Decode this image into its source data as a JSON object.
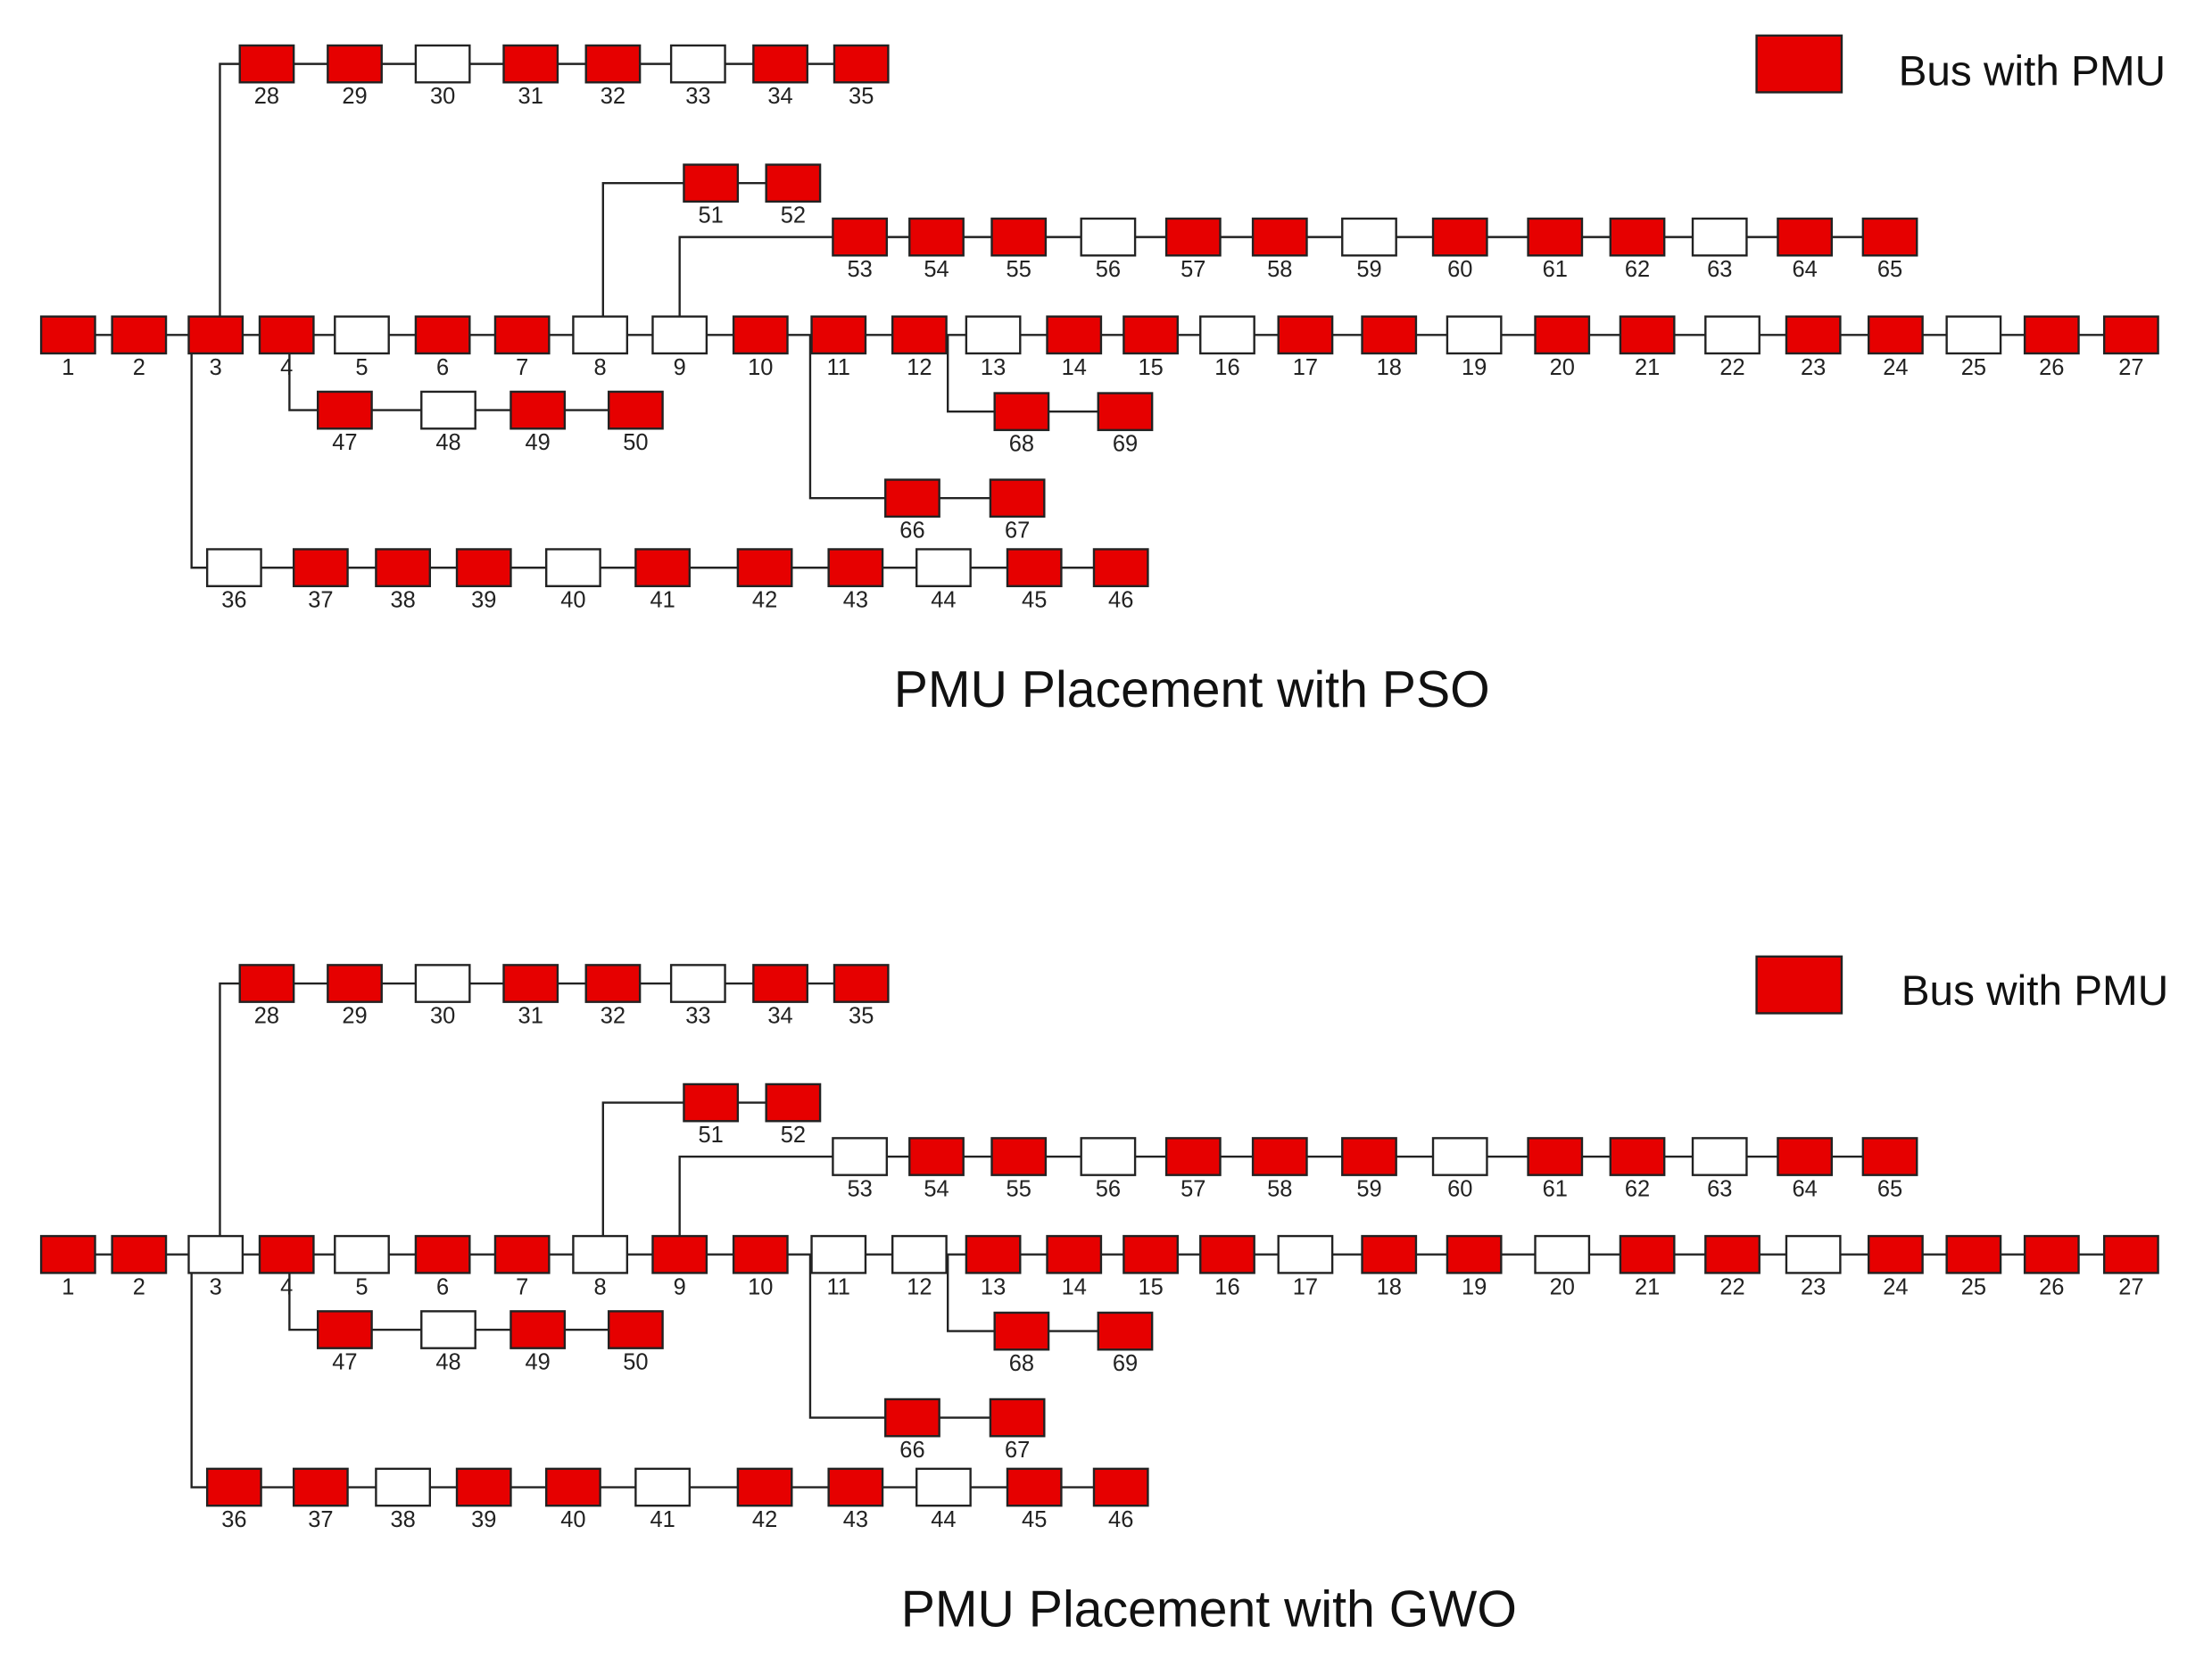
{
  "diagrams": [
    {
      "title": "PMU Placement with PSO",
      "legend": {
        "label": "Bus with PMU",
        "color": "#e60000"
      },
      "buses": [
        {
          "label": "1",
          "pmu": true
        },
        {
          "label": "2",
          "pmu": true
        },
        {
          "label": "3",
          "pmu": true
        },
        {
          "label": "4",
          "pmu": true
        },
        {
          "label": "5",
          "pmu": false
        },
        {
          "label": "6",
          "pmu": true
        },
        {
          "label": "7",
          "pmu": true
        },
        {
          "label": "8",
          "pmu": false
        },
        {
          "label": "9",
          "pmu": false
        },
        {
          "label": "10",
          "pmu": true
        },
        {
          "label": "11",
          "pmu": true
        },
        {
          "label": "12",
          "pmu": true
        },
        {
          "label": "13",
          "pmu": false
        },
        {
          "label": "14",
          "pmu": true
        },
        {
          "label": "15",
          "pmu": true
        },
        {
          "label": "16",
          "pmu": false
        },
        {
          "label": "17",
          "pmu": true
        },
        {
          "label": "18",
          "pmu": true
        },
        {
          "label": "19",
          "pmu": false
        },
        {
          "label": "20",
          "pmu": true
        },
        {
          "label": "21",
          "pmu": true
        },
        {
          "label": "22",
          "pmu": false
        },
        {
          "label": "23",
          "pmu": true
        },
        {
          "label": "24",
          "pmu": true
        },
        {
          "label": "25",
          "pmu": false
        },
        {
          "label": "26",
          "pmu": true
        },
        {
          "label": "27",
          "pmu": true
        },
        {
          "label": "28",
          "pmu": true
        },
        {
          "label": "29",
          "pmu": true
        },
        {
          "label": "30",
          "pmu": false
        },
        {
          "label": "31",
          "pmu": true
        },
        {
          "label": "32",
          "pmu": true
        },
        {
          "label": "33",
          "pmu": false
        },
        {
          "label": "34",
          "pmu": true
        },
        {
          "label": "35",
          "pmu": true
        },
        {
          "label": "36",
          "pmu": false
        },
        {
          "label": "37",
          "pmu": true
        },
        {
          "label": "38",
          "pmu": true
        },
        {
          "label": "39",
          "pmu": true
        },
        {
          "label": "40",
          "pmu": false
        },
        {
          "label": "41",
          "pmu": true
        },
        {
          "label": "42",
          "pmu": true
        },
        {
          "label": "43",
          "pmu": true
        },
        {
          "label": "44",
          "pmu": false
        },
        {
          "label": "45",
          "pmu": true
        },
        {
          "label": "46",
          "pmu": true
        },
        {
          "label": "47",
          "pmu": true
        },
        {
          "label": "48",
          "pmu": false
        },
        {
          "label": "49",
          "pmu": true
        },
        {
          "label": "50",
          "pmu": true
        },
        {
          "label": "51",
          "pmu": true
        },
        {
          "label": "52",
          "pmu": true
        },
        {
          "label": "53",
          "pmu": true
        },
        {
          "label": "54",
          "pmu": true
        },
        {
          "label": "55",
          "pmu": true
        },
        {
          "label": "56",
          "pmu": false
        },
        {
          "label": "57",
          "pmu": true
        },
        {
          "label": "58",
          "pmu": true
        },
        {
          "label": "59",
          "pmu": false
        },
        {
          "label": "60",
          "pmu": true
        },
        {
          "label": "61",
          "pmu": true
        },
        {
          "label": "62",
          "pmu": true
        },
        {
          "label": "63",
          "pmu": false
        },
        {
          "label": "64",
          "pmu": true
        },
        {
          "label": "65",
          "pmu": true
        },
        {
          "label": "66",
          "pmu": true
        },
        {
          "label": "67",
          "pmu": true
        },
        {
          "label": "68",
          "pmu": true
        },
        {
          "label": "69",
          "pmu": true
        }
      ]
    },
    {
      "title": "PMU Placement with GWO",
      "legend": {
        "label": "Bus with PMU",
        "color": "#e60000"
      },
      "buses": [
        {
          "label": "1",
          "pmu": true
        },
        {
          "label": "2",
          "pmu": true
        },
        {
          "label": "3",
          "pmu": false
        },
        {
          "label": "4",
          "pmu": true
        },
        {
          "label": "5",
          "pmu": false
        },
        {
          "label": "6",
          "pmu": true
        },
        {
          "label": "7",
          "pmu": true
        },
        {
          "label": "8",
          "pmu": false
        },
        {
          "label": "9",
          "pmu": true
        },
        {
          "label": "10",
          "pmu": true
        },
        {
          "label": "11",
          "pmu": false
        },
        {
          "label": "12",
          "pmu": false
        },
        {
          "label": "13",
          "pmu": true
        },
        {
          "label": "14",
          "pmu": true
        },
        {
          "label": "15",
          "pmu": true
        },
        {
          "label": "16",
          "pmu": true
        },
        {
          "label": "17",
          "pmu": false
        },
        {
          "label": "18",
          "pmu": true
        },
        {
          "label": "19",
          "pmu": true
        },
        {
          "label": "20",
          "pmu": false
        },
        {
          "label": "21",
          "pmu": true
        },
        {
          "label": "22",
          "pmu": true
        },
        {
          "label": "23",
          "pmu": false
        },
        {
          "label": "24",
          "pmu": true
        },
        {
          "label": "25",
          "pmu": true
        },
        {
          "label": "26",
          "pmu": true
        },
        {
          "label": "27",
          "pmu": true
        },
        {
          "label": "28",
          "pmu": true
        },
        {
          "label": "29",
          "pmu": true
        },
        {
          "label": "30",
          "pmu": false
        },
        {
          "label": "31",
          "pmu": true
        },
        {
          "label": "32",
          "pmu": true
        },
        {
          "label": "33",
          "pmu": false
        },
        {
          "label": "34",
          "pmu": true
        },
        {
          "label": "35",
          "pmu": true
        },
        {
          "label": "36",
          "pmu": true
        },
        {
          "label": "37",
          "pmu": true
        },
        {
          "label": "38",
          "pmu": false
        },
        {
          "label": "39",
          "pmu": true
        },
        {
          "label": "40",
          "pmu": true
        },
        {
          "label": "41",
          "pmu": false
        },
        {
          "label": "42",
          "pmu": true
        },
        {
          "label": "43",
          "pmu": true
        },
        {
          "label": "44",
          "pmu": false
        },
        {
          "label": "45",
          "pmu": true
        },
        {
          "label": "46",
          "pmu": true
        },
        {
          "label": "47",
          "pmu": true
        },
        {
          "label": "48",
          "pmu": false
        },
        {
          "label": "49",
          "pmu": true
        },
        {
          "label": "50",
          "pmu": true
        },
        {
          "label": "51",
          "pmu": true
        },
        {
          "label": "52",
          "pmu": true
        },
        {
          "label": "53",
          "pmu": false
        },
        {
          "label": "54",
          "pmu": true
        },
        {
          "label": "55",
          "pmu": true
        },
        {
          "label": "56",
          "pmu": false
        },
        {
          "label": "57",
          "pmu": true
        },
        {
          "label": "58",
          "pmu": true
        },
        {
          "label": "59",
          "pmu": true
        },
        {
          "label": "60",
          "pmu": false
        },
        {
          "label": "61",
          "pmu": true
        },
        {
          "label": "62",
          "pmu": true
        },
        {
          "label": "63",
          "pmu": false
        },
        {
          "label": "64",
          "pmu": true
        },
        {
          "label": "65",
          "pmu": true
        },
        {
          "label": "66",
          "pmu": true
        },
        {
          "label": "67",
          "pmu": true
        },
        {
          "label": "68",
          "pmu": true
        },
        {
          "label": "69",
          "pmu": true
        }
      ]
    }
  ]
}
